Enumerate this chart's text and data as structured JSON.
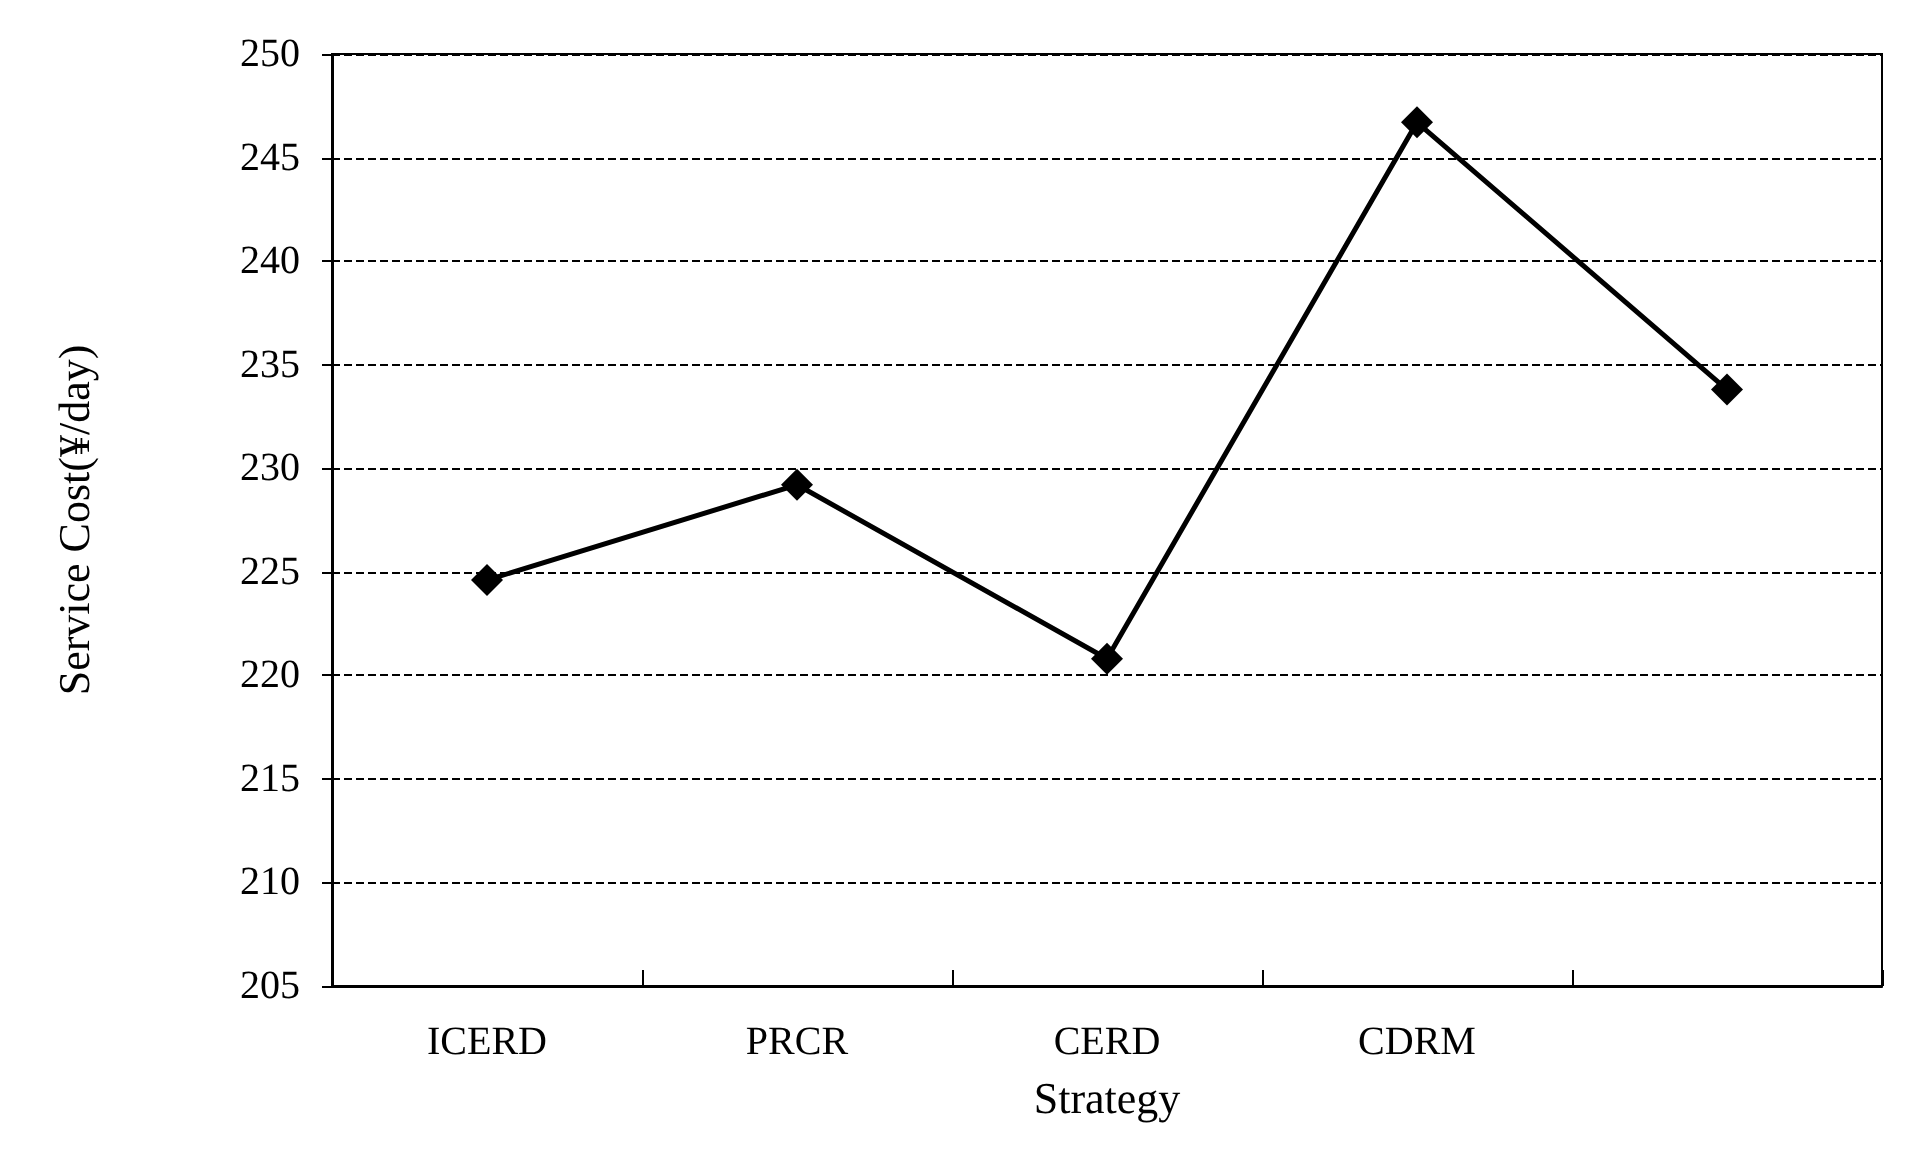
{
  "chart_data": {
    "type": "line",
    "xlabel": "Strategy",
    "ylabel": "Service Cost(¥/day)",
    "categories": [
      "ICERD",
      "PRCR",
      "CERD",
      "CDRM",
      null
    ],
    "series": [
      {
        "color": "#000000",
        "values": [
          224.6,
          229.2,
          220.8,
          246.7,
          233.8
        ]
      }
    ],
    "ylim": [
      205,
      250
    ],
    "yticks": [
      205,
      210,
      215,
      220,
      225,
      230,
      235,
      240,
      245,
      250
    ],
    "grid": "y",
    "marker": "diamond",
    "line_style": "solid"
  }
}
